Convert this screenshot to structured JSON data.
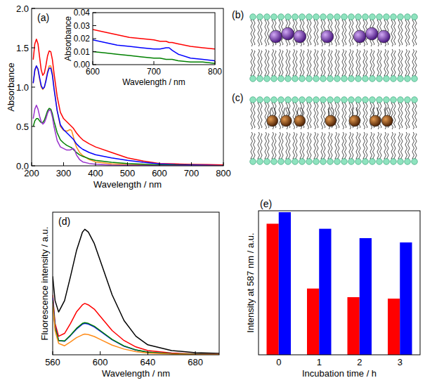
{
  "chart_data": [
    {
      "type": "line",
      "title": "(a)",
      "xlabel": "Wavelength / nm",
      "ylabel": "Absorbance",
      "x": [
        205,
        210,
        215,
        220,
        225,
        230,
        235,
        240,
        245,
        250,
        255,
        260,
        265,
        270,
        280,
        290,
        300,
        310,
        320,
        325,
        330,
        335,
        340,
        350,
        360,
        380,
        400,
        450,
        500,
        550,
        600,
        650,
        700,
        750,
        800
      ],
      "series": [
        {
          "color": "#ff0000",
          "values": [
            1.35,
            1.55,
            1.61,
            1.55,
            1.38,
            1.22,
            1.15,
            1.18,
            1.28,
            1.4,
            1.46,
            1.45,
            1.35,
            1.18,
            0.88,
            0.68,
            0.6,
            0.56,
            0.52,
            0.5,
            0.48,
            0.45,
            0.42,
            0.37,
            0.33,
            0.28,
            0.24,
            0.17,
            0.1,
            0.06,
            0.03,
            0.024,
            0.018,
            0.015,
            0.012
          ]
        },
        {
          "color": "#ff8c1a",
          "values": [
            1.05,
            1.2,
            1.27,
            1.22,
            1.1,
            1.0,
            0.97,
            1.0,
            1.1,
            1.2,
            1.27,
            1.27,
            1.18,
            1.0,
            0.7,
            0.5,
            0.45,
            0.44,
            0.46,
            0.45,
            0.38,
            0.3,
            0.24,
            0.17,
            0.13,
            0.08,
            0.05,
            0.025,
            0.015,
            0.01,
            0.006,
            0.004,
            0.003,
            0.002,
            0.002
          ]
        },
        {
          "color": "#0000ff",
          "values": [
            1.05,
            1.22,
            1.27,
            1.23,
            1.12,
            1.02,
            0.98,
            1.0,
            1.08,
            1.18,
            1.24,
            1.24,
            1.15,
            0.98,
            0.7,
            0.52,
            0.46,
            0.42,
            0.38,
            0.36,
            0.34,
            0.31,
            0.28,
            0.24,
            0.21,
            0.17,
            0.14,
            0.1,
            0.07,
            0.045,
            0.025,
            0.015,
            0.012,
            0.006,
            0.003
          ]
        },
        {
          "color": "#008000",
          "values": [
            0.5,
            0.57,
            0.6,
            0.6,
            0.57,
            0.55,
            0.55,
            0.58,
            0.64,
            0.7,
            0.73,
            0.72,
            0.66,
            0.57,
            0.42,
            0.33,
            0.29,
            0.26,
            0.24,
            0.23,
            0.21,
            0.19,
            0.17,
            0.14,
            0.12,
            0.09,
            0.07,
            0.045,
            0.03,
            0.02,
            0.012,
            0.008,
            0.005,
            0.003,
            0.002
          ]
        },
        {
          "color": "#9933cc",
          "values": [
            0.6,
            0.72,
            0.77,
            0.72,
            0.63,
            0.56,
            0.53,
            0.55,
            0.6,
            0.67,
            0.71,
            0.7,
            0.62,
            0.5,
            0.32,
            0.24,
            0.22,
            0.2,
            0.2,
            0.21,
            0.22,
            0.2,
            0.14,
            0.08,
            0.05,
            0.03,
            0.02,
            0.01,
            0.006,
            0.004,
            0.003,
            0.002,
            0.002,
            0.001,
            0.001
          ]
        }
      ],
      "xlim": [
        200,
        800
      ],
      "ylim": [
        0,
        2
      ],
      "xticks": [
        200,
        300,
        400,
        500,
        600,
        700,
        800
      ],
      "yticks": [
        {
          "value": 0,
          "label": "0.0"
        },
        0.5,
        {
          "value": 1,
          "label": "1.0"
        },
        1.5,
        {
          "value": 2,
          "label": "2.0"
        }
      ],
      "grid": false
    },
    {
      "type": "line",
      "xlabel": "Wavelength / nm",
      "ylabel": "Absorbance",
      "x": [
        600,
        620,
        640,
        660,
        680,
        700,
        710,
        720,
        725,
        730,
        740,
        760,
        780,
        800
      ],
      "series": [
        {
          "color": "#ff0000",
          "values": [
            0.027,
            0.025,
            0.023,
            0.021,
            0.02,
            0.019,
            0.018,
            0.018,
            0.017,
            0.017,
            0.016,
            0.014,
            0.013,
            0.012
          ]
        },
        {
          "color": "#0000ff",
          "values": [
            0.019,
            0.017,
            0.015,
            0.014,
            0.013,
            0.012,
            0.012,
            0.013,
            0.013,
            0.011,
            0.008,
            0.005,
            0.004,
            0.003
          ]
        },
        {
          "color": "#008000",
          "values": [
            0.01,
            0.009,
            0.008,
            0.007,
            0.006,
            0.005,
            0.005,
            0.004,
            0.004,
            0.004,
            0.003,
            0.002,
            0.002,
            0.001
          ]
        }
      ],
      "xlim": [
        600,
        800
      ],
      "ylim": [
        0,
        0.04
      ],
      "xticks": [
        600,
        700,
        800
      ],
      "yticks": [
        {
          "value": 0,
          "label": "0.00"
        },
        0.01,
        0.02,
        0.03,
        0.04
      ],
      "grid": false
    },
    {
      "type": "line",
      "title": "(d)",
      "xlabel": "Wavelength / nm",
      "ylabel": "Fluorescence intensity / a.u.",
      "x": [
        560,
        562,
        565,
        570,
        575,
        580,
        585,
        587,
        590,
        595,
        600,
        610,
        620,
        630,
        640,
        660,
        680,
        700
      ],
      "series": [
        {
          "color": "#000000",
          "values": [
            0.55,
            0.38,
            0.3,
            0.38,
            0.55,
            0.73,
            0.86,
            0.88,
            0.86,
            0.78,
            0.66,
            0.42,
            0.24,
            0.13,
            0.07,
            0.03,
            0.015,
            0.01
          ]
        },
        {
          "color": "#ff0000",
          "values": [
            0.42,
            0.22,
            0.13,
            0.15,
            0.22,
            0.3,
            0.35,
            0.36,
            0.35,
            0.32,
            0.27,
            0.17,
            0.1,
            0.055,
            0.03,
            0.012,
            0.006,
            0.004
          ]
        },
        {
          "color": "#0000ff",
          "values": [
            0.4,
            0.2,
            0.1,
            0.095,
            0.135,
            0.18,
            0.215,
            0.22,
            0.215,
            0.195,
            0.165,
            0.105,
            0.06,
            0.033,
            0.018,
            0.008,
            0.004,
            0.003
          ]
        },
        {
          "color": "#008000",
          "values": [
            0.38,
            0.19,
            0.1,
            0.097,
            0.138,
            0.185,
            0.22,
            0.225,
            0.22,
            0.2,
            0.17,
            0.108,
            0.062,
            0.034,
            0.019,
            0.008,
            0.004,
            0.003
          ]
        },
        {
          "color": "#ff8c1a",
          "values": [
            0.36,
            0.17,
            0.08,
            0.063,
            0.09,
            0.12,
            0.14,
            0.145,
            0.142,
            0.128,
            0.108,
            0.068,
            0.04,
            0.022,
            0.012,
            0.005,
            0.003,
            0.002
          ]
        }
      ],
      "xlim": [
        560,
        700
      ],
      "ylim": [
        0,
        1
      ],
      "xticks": [
        560,
        600,
        640,
        680
      ],
      "tick_labels": "x",
      "grid": false
    },
    {
      "type": "bar",
      "title": "(e)",
      "xlabel": "Incubation time / h",
      "ylabel": "Intensity at 587 nm / a.u.",
      "categories": [
        "0",
        "1",
        "2",
        "3"
      ],
      "series": [
        {
          "color": "#ff0000",
          "values": [
            0.91,
            0.46,
            0.4,
            0.39
          ]
        },
        {
          "color": "#0000ff",
          "values": [
            0.99,
            0.875,
            0.81,
            0.78
          ]
        }
      ],
      "ylim": [
        0,
        1
      ],
      "tick_labels": "x",
      "grid": false
    }
  ],
  "diagram": {
    "panels": [
      {
        "label": "(b)"
      },
      {
        "label": "(c)"
      }
    ]
  }
}
